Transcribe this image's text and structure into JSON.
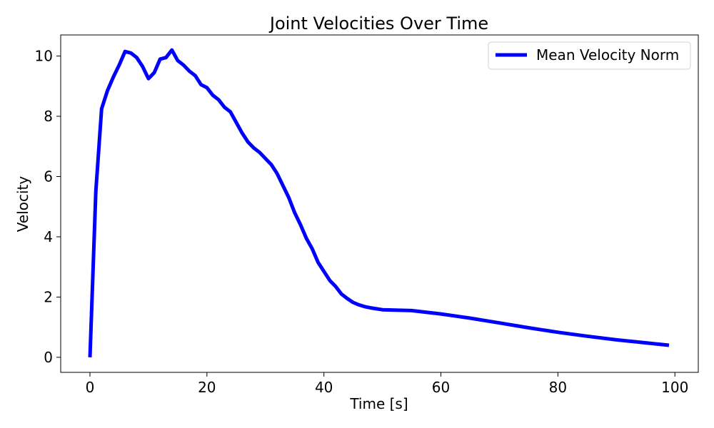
{
  "chart_data": {
    "type": "line",
    "title": "Joint Velocities Over Time",
    "xlabel": "Time [s]",
    "ylabel": "Velocity",
    "xlim": [
      -5,
      104
    ],
    "ylim": [
      -0.5,
      10.7
    ],
    "xticks": [
      0,
      20,
      40,
      60,
      80,
      100
    ],
    "yticks": [
      0,
      2,
      4,
      6,
      8,
      10
    ],
    "xtick_labels": [
      "0",
      "20",
      "40",
      "60",
      "80",
      "100"
    ],
    "ytick_labels": [
      "0",
      "2",
      "4",
      "6",
      "8",
      "10"
    ],
    "grid": false,
    "legend_position": "upper right",
    "series": [
      {
        "name": "Mean Velocity Norm",
        "color": "#0000ff",
        "x": [
          0,
          1,
          2,
          3,
          4,
          5,
          6,
          7,
          8,
          9,
          10,
          11,
          12,
          13,
          14,
          15,
          16,
          17,
          18,
          19,
          20,
          21,
          22,
          23,
          24,
          25,
          26,
          27,
          28,
          29,
          30,
          31,
          32,
          33,
          34,
          35,
          36,
          37,
          38,
          39,
          40,
          41,
          42,
          43,
          44,
          45,
          46,
          47,
          48,
          49,
          50,
          55,
          60,
          65,
          70,
          75,
          80,
          85,
          90,
          95,
          99
        ],
        "values": [
          0.0,
          5.5,
          8.25,
          8.85,
          9.3,
          9.7,
          10.15,
          10.1,
          9.95,
          9.65,
          9.25,
          9.45,
          9.9,
          9.95,
          10.2,
          9.85,
          9.7,
          9.5,
          9.35,
          9.05,
          8.95,
          8.7,
          8.55,
          8.3,
          8.15,
          7.8,
          7.45,
          7.15,
          6.95,
          6.8,
          6.6,
          6.4,
          6.1,
          5.7,
          5.3,
          4.8,
          4.4,
          3.95,
          3.6,
          3.15,
          2.85,
          2.55,
          2.35,
          2.1,
          1.95,
          1.82,
          1.74,
          1.68,
          1.64,
          1.61,
          1.58,
          1.55,
          1.44,
          1.3,
          1.14,
          0.98,
          0.83,
          0.7,
          0.58,
          0.48,
          0.4
        ]
      }
    ]
  }
}
